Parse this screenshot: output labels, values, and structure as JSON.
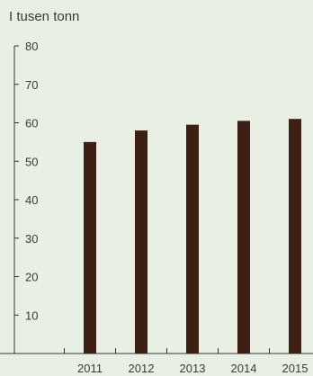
{
  "chart_data": {
    "type": "bar",
    "unit_label": "I tusen tonn",
    "categories": [
      "2011",
      "2012",
      "2013",
      "2014",
      "2015"
    ],
    "values": [
      55,
      58,
      59.5,
      60.5,
      61
    ],
    "ylim": [
      0,
      80
    ],
    "yticks": [
      10,
      20,
      30,
      40,
      50,
      60,
      70,
      80
    ],
    "bar_color": "#3d1f14",
    "axis_color": "#333333",
    "background": "#e8f0e4",
    "grid": false,
    "legend": "none"
  }
}
